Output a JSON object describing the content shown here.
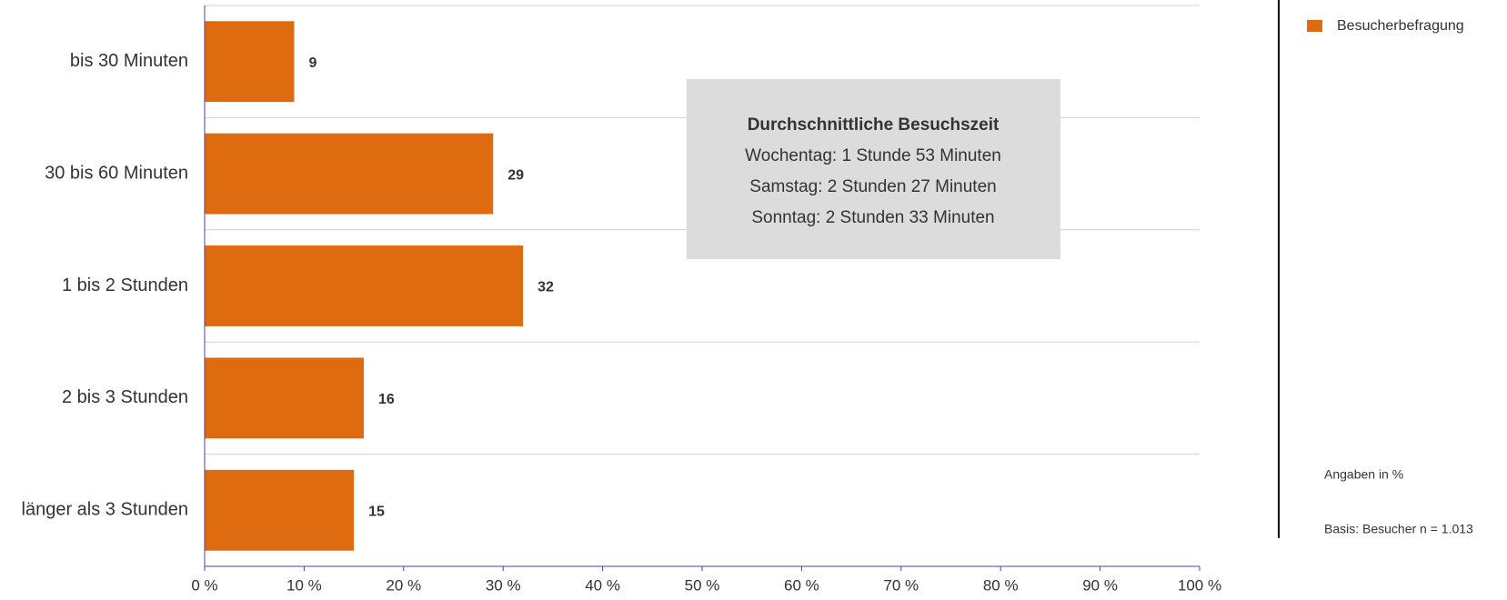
{
  "chart_data": {
    "type": "bar",
    "orientation": "horizontal",
    "categories": [
      "bis 30 Minuten",
      "30 bis 60 Minuten",
      "1 bis 2 Stunden",
      "2 bis 3 Stunden",
      "länger als 3 Stunden"
    ],
    "series": [
      {
        "name": "Besucherbefragung",
        "color": "#de6b10",
        "values": [
          9,
          29,
          32,
          16,
          15
        ]
      }
    ],
    "xlim": [
      0,
      100
    ],
    "xticks": [
      {
        "value": 0,
        "label": "0 %"
      },
      {
        "value": 10,
        "label": "10 %"
      },
      {
        "value": 20,
        "label": "20 %"
      },
      {
        "value": 30,
        "label": "30 %"
      },
      {
        "value": 40,
        "label": "40 %"
      },
      {
        "value": 50,
        "label": "50 %"
      },
      {
        "value": 60,
        "label": "60 %"
      },
      {
        "value": 70,
        "label": "70 %"
      },
      {
        "value": 80,
        "label": "80 %"
      },
      {
        "value": 90,
        "label": "90 %"
      },
      {
        "value": 100,
        "label": "100 %"
      }
    ],
    "annotation": {
      "title": "Durchschnittliche Besuchszeit",
      "lines": [
        "Wochentag: 1 Stunde 53 Minuten",
        "Samstag: 2 Stunden 27 Minuten",
        "Sonntag: 2 Stunden 33 Minuten"
      ]
    },
    "notes": [
      "Angaben in %",
      "Basis: Besucher n = 1.013"
    ],
    "legend": "top-right"
  }
}
